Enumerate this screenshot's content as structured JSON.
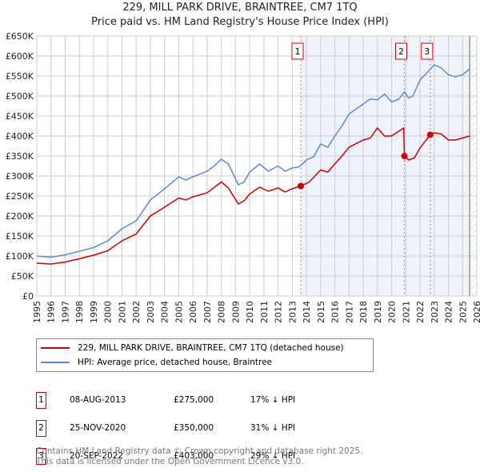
{
  "chart_data": {
    "type": "line",
    "title": "229, MILL PARK DRIVE, BRAINTREE, CM7 1TQ",
    "subtitle": "Price paid vs. HM Land Registry's House Price Index (HPI)",
    "xlim": [
      1995,
      2026
    ],
    "ylim": [
      0,
      650000
    ],
    "x_ticks": [
      "1995",
      "1996",
      "1997",
      "1998",
      "1999",
      "2000",
      "2001",
      "2002",
      "2003",
      "2004",
      "2005",
      "2006",
      "2007",
      "2008",
      "2009",
      "2010",
      "2011",
      "2012",
      "2013",
      "2014",
      "2015",
      "2016",
      "2017",
      "2018",
      "2019",
      "2020",
      "2021",
      "2022",
      "2023",
      "2024",
      "2025",
      "2026"
    ],
    "y_ticks": [
      "£0",
      "£50K",
      "£100K",
      "£150K",
      "£200K",
      "£250K",
      "£300K",
      "£350K",
      "£400K",
      "£450K",
      "£500K",
      "£550K",
      "£600K",
      "£650K"
    ],
    "grid": true,
    "series": [
      {
        "name": "229, MILL PARK DRIVE, BRAINTREE, CM7 1TQ (detached house)",
        "color": "#cc0000",
        "x": [
          1995,
          1996,
          1997,
          1998,
          1999,
          2000,
          2001,
          2002,
          2003,
          2004,
          2005,
          2005.5,
          2006,
          2007,
          2008,
          2008.5,
          2009.2,
          2009.6,
          2010,
          2010.7,
          2011.3,
          2012,
          2012.5,
          2013,
          2013.6,
          2014.2,
          2015,
          2015.5,
          2016,
          2016.5,
          2017,
          2018,
          2018.5,
          2019,
          2019.5,
          2020,
          2020.85,
          2020.9,
          2021.2,
          2021.6,
          2022,
          2022.72,
          2023,
          2023.5,
          2024,
          2024.5,
          2025,
          2025.5
        ],
        "values": [
          82,
          80,
          85,
          93,
          102,
          113,
          138,
          155,
          200,
          222,
          245,
          240,
          248,
          258,
          285,
          270,
          230,
          238,
          255,
          272,
          262,
          270,
          260,
          268,
          275,
          285,
          315,
          310,
          330,
          350,
          372,
          390,
          395,
          420,
          400,
          400,
          420,
          350,
          340,
          345,
          370,
          403,
          408,
          405,
          390,
          390,
          395,
          400
        ]
      },
      {
        "name": "HPI: Average price, detached house, Braintree",
        "color": "#5b8bd0",
        "x": [
          1995,
          1996,
          1997,
          1998,
          1999,
          2000,
          2001,
          2002,
          2003,
          2004,
          2005,
          2005.5,
          2006,
          2007,
          2007.5,
          2008,
          2008.5,
          2009.2,
          2009.6,
          2010,
          2010.7,
          2011.3,
          2012,
          2012.5,
          2013,
          2013.5,
          2014,
          2014.5,
          2015,
          2015.5,
          2016,
          2016.5,
          2017,
          2018,
          2018.5,
          2019,
          2019.5,
          2020,
          2020.5,
          2020.9,
          2021.2,
          2021.5,
          2022,
          2022.8,
          2023,
          2023.5,
          2024,
          2024.5,
          2025,
          2025.5
        ],
        "values": [
          100,
          97,
          103,
          112,
          121,
          138,
          168,
          188,
          240,
          268,
          298,
          290,
          298,
          312,
          325,
          342,
          330,
          278,
          285,
          310,
          330,
          312,
          325,
          312,
          320,
          323,
          340,
          348,
          380,
          372,
          400,
          425,
          455,
          480,
          493,
          490,
          505,
          485,
          492,
          510,
          495,
          500,
          540,
          570,
          578,
          570,
          553,
          548,
          553,
          568
        ]
      }
    ],
    "sales": [
      {
        "label": "1",
        "date": "08-AUG-2013",
        "x": 2013.6,
        "price": "£275,000",
        "value": 275,
        "hpi": "17% ↓ HPI"
      },
      {
        "label": "2",
        "date": "25-NOV-2020",
        "x": 2020.9,
        "price": "£350,000",
        "value": 350,
        "hpi": "31% ↓ HPI"
      },
      {
        "label": "3",
        "date": "20-SEP-2022",
        "x": 2022.72,
        "price": "£403,000",
        "value": 403,
        "hpi": "29% ↓ HPI"
      }
    ],
    "shaded_from": 2013.6,
    "forecast_from": 2025.5
  },
  "footer": {
    "line1": "Contains HM Land Registry data © Crown copyright and database right 2025.",
    "line2": "This data is licensed under the Open Government Licence v3.0."
  }
}
